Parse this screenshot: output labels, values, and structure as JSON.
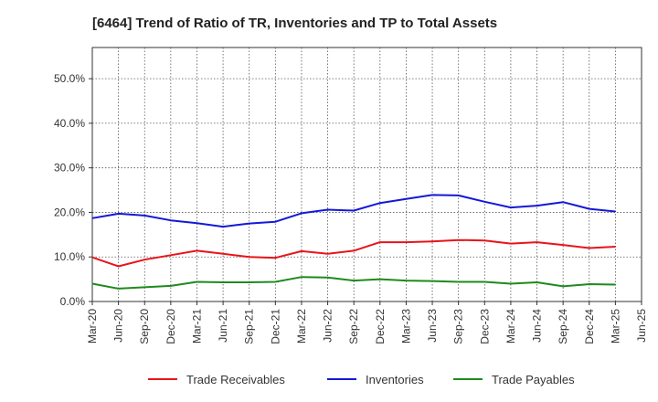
{
  "chart_data": {
    "type": "line",
    "title": "[6464]  Trend of Ratio of TR, Inventories and TP to Total Assets",
    "xlabel": "",
    "ylabel": "",
    "x": [
      "Mar-20",
      "Jun-20",
      "Sep-20",
      "Dec-20",
      "Mar-21",
      "Jun-21",
      "Sep-21",
      "Dec-21",
      "Mar-22",
      "Jun-22",
      "Sep-22",
      "Dec-22",
      "Mar-23",
      "Jun-23",
      "Sep-23",
      "Dec-23",
      "Mar-24",
      "Jun-24",
      "Sep-24",
      "Dec-24",
      "Mar-25",
      "Jun-25"
    ],
    "ylim": [
      0,
      57
    ],
    "yticks": [
      0,
      10,
      20,
      30,
      40,
      50
    ],
    "ytick_labels": [
      "0.0%",
      "10.0%",
      "20.0%",
      "30.0%",
      "40.0%",
      "50.0%"
    ],
    "grid": true,
    "legend_position": "bottom",
    "series": [
      {
        "name": "Trade Receivables",
        "color": "#e8141b",
        "values": [
          9.9,
          7.9,
          9.4,
          10.4,
          11.4,
          10.7,
          10.0,
          9.8,
          11.3,
          10.7,
          11.4,
          13.3,
          13.3,
          13.5,
          13.8,
          13.7,
          13.0,
          13.3,
          12.7,
          12.0,
          12.3,
          null
        ]
      },
      {
        "name": "Inventories",
        "color": "#1418d8",
        "values": [
          18.7,
          19.7,
          19.3,
          18.2,
          17.6,
          16.8,
          17.5,
          17.9,
          19.8,
          20.6,
          20.4,
          22.1,
          23.0,
          23.9,
          23.8,
          22.4,
          21.1,
          21.5,
          22.3,
          20.8,
          20.2,
          null
        ]
      },
      {
        "name": "Trade Payables",
        "color": "#1e8a1e",
        "values": [
          4.0,
          2.9,
          3.2,
          3.5,
          4.4,
          4.3,
          4.3,
          4.4,
          5.5,
          5.4,
          4.7,
          5.0,
          4.7,
          4.6,
          4.4,
          4.4,
          4.0,
          4.3,
          3.4,
          3.9,
          3.8,
          null
        ]
      }
    ]
  }
}
